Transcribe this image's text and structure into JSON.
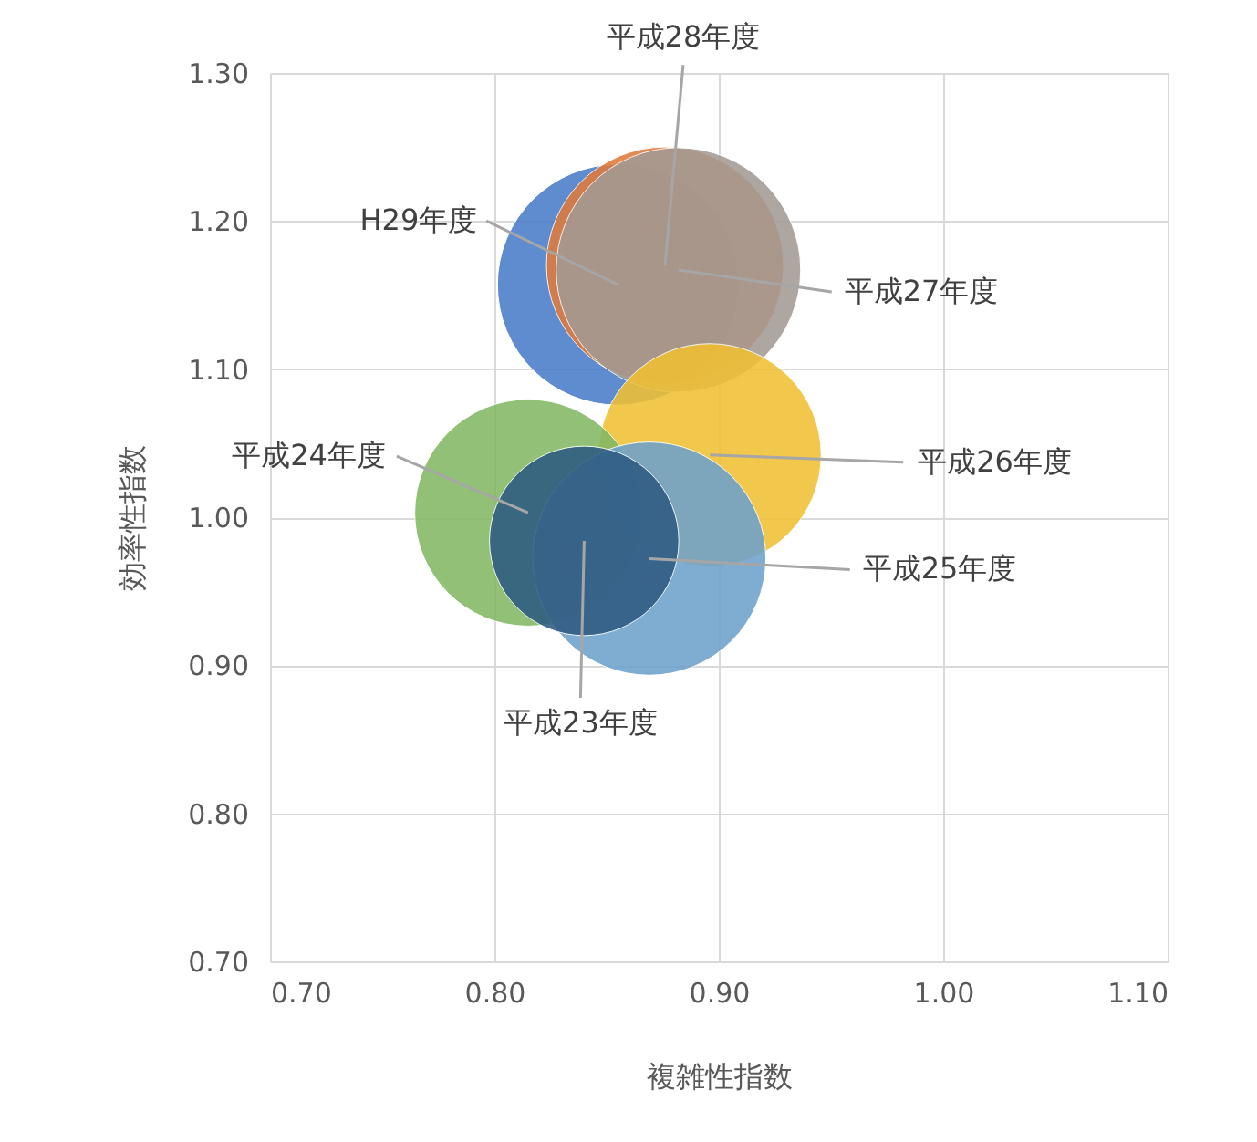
{
  "chart_data": {
    "type": "bubble",
    "xlabel": "複雑性指数",
    "ylabel": "効率性指数",
    "xlim": [
      0.7,
      1.1
    ],
    "ylim": [
      0.7,
      1.3
    ],
    "xticks": [
      {
        "value": 0.7,
        "label": "0.70"
      },
      {
        "value": 0.8,
        "label": "0.80"
      },
      {
        "value": 0.9,
        "label": "0.90"
      },
      {
        "value": 1.0,
        "label": "1.00"
      },
      {
        "value": 1.1,
        "label": "1.10"
      }
    ],
    "yticks": [
      {
        "value": 0.7,
        "label": "0.70"
      },
      {
        "value": 0.8,
        "label": "0.80"
      },
      {
        "value": 0.9,
        "label": "0.90"
      },
      {
        "value": 1.0,
        "label": "1.00"
      },
      {
        "value": 1.1,
        "label": "1.10"
      },
      {
        "value": 1.2,
        "label": "1.20"
      },
      {
        "value": 1.3,
        "label": "1.30"
      }
    ],
    "grid": true,
    "series": [
      {
        "name": "H29年度",
        "color": "#4a7cc9",
        "x": [
          0.855
        ],
        "values": [
          1.157
        ],
        "sizes": [
          0.97
        ]
      },
      {
        "name": "平成28年度",
        "color": "#e07a3c",
        "x": [
          0.876
        ],
        "values": [
          1.17
        ],
        "sizes": [
          0.94
        ]
      },
      {
        "name": "平成27年度",
        "color": "#a39a94",
        "x": [
          0.882
        ],
        "values": [
          1.167
        ],
        "sizes": [
          1
        ]
      },
      {
        "name": "平成26年度",
        "color": "#f0c034",
        "x": [
          0.896
        ],
        "values": [
          1.042
        ],
        "sizes": [
          0.83
        ]
      },
      {
        "name": "平成24年度",
        "color": "#82b864",
        "x": [
          0.815
        ],
        "values": [
          1.003
        ],
        "sizes": [
          0.86
        ]
      },
      {
        "name": "平成25年度",
        "color": "#6ea2cc",
        "x": [
          0.869
        ],
        "values": [
          0.972
        ],
        "sizes": [
          0.91
        ]
      },
      {
        "name": "平成23年度",
        "color": "#2f5b82",
        "x": [
          0.84
        ],
        "values": [
          0.984
        ],
        "sizes": [
          0.6
        ]
      }
    ]
  }
}
